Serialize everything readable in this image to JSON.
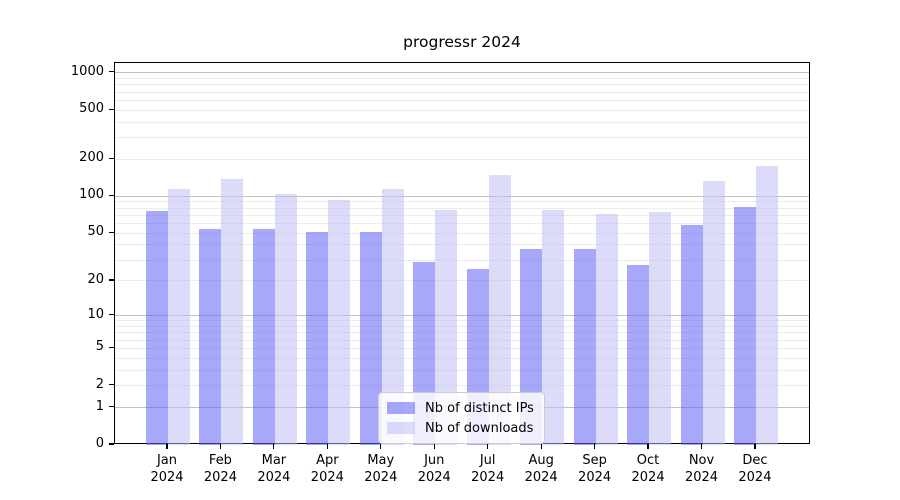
{
  "title": "progressr 2024",
  "colors": {
    "bar_distinct_ips": "rgba(97,97,246,0.55)",
    "bar_downloads": "rgba(191,191,246,0.55)",
    "grid_major": "#c2c2c2",
    "grid_minor": "#ececec",
    "axis": "#000000",
    "legend_border": "#cccccc"
  },
  "chart_data": {
    "type": "bar",
    "title": "progressr 2024",
    "categories": [
      "Jan 2024",
      "Feb 2024",
      "Mar 2024",
      "Apr 2024",
      "May 2024",
      "Jun 2024",
      "Jul 2024",
      "Aug 2024",
      "Sep 2024",
      "Oct 2024",
      "Nov 2024",
      "Dec 2024"
    ],
    "series": [
      {
        "name": "Nb of distinct IPs",
        "color": "rgba(97,97,246,0.55)",
        "values": [
          76,
          54,
          54,
          51,
          51,
          29,
          25,
          37,
          37,
          27,
          58,
          82
        ]
      },
      {
        "name": "Nb of downloads",
        "color": "rgba(191,191,246,0.55)",
        "values": [
          115,
          139,
          104,
          94,
          114,
          78,
          148,
          78,
          72,
          75,
          134,
          175
        ]
      }
    ],
    "yscale": "log1p",
    "y_ticks": [
      0,
      1,
      2,
      5,
      10,
      20,
      50,
      100,
      200,
      500,
      1000
    ],
    "ylim": [
      0,
      1200
    ],
    "xlabel": "",
    "ylabel": "",
    "grid": true,
    "grid_major_at": [
      1,
      10,
      100,
      1000
    ],
    "legend_position": "lower center"
  }
}
